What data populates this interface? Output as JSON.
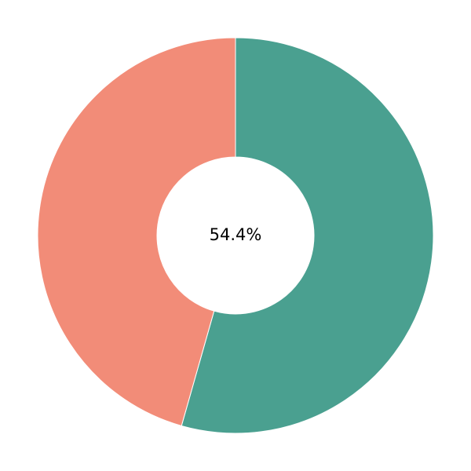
{
  "chart_data": {
    "type": "donut",
    "values": [
      54.4,
      45.6
    ],
    "colors": [
      "#4aa090",
      "#f28c78"
    ],
    "center_label": "54.4%"
  }
}
